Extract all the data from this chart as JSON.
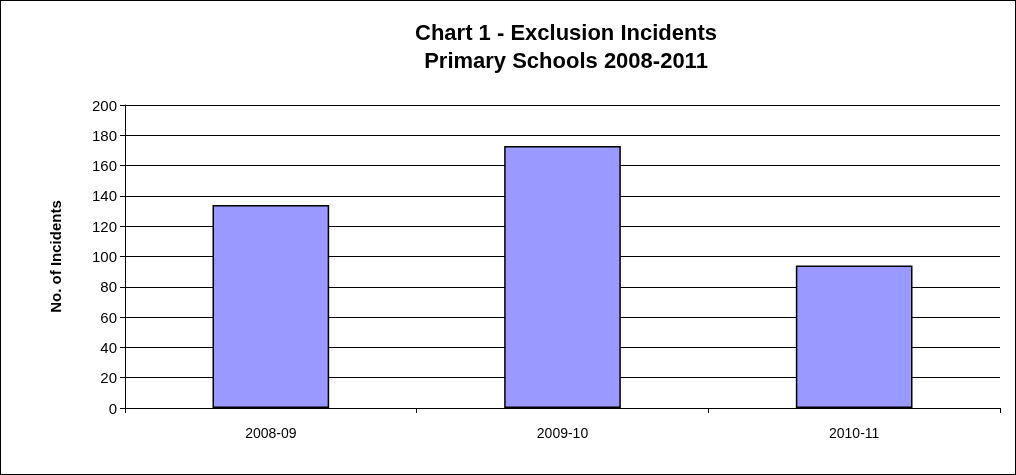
{
  "chart_data": {
    "type": "bar",
    "title": "Chart 1 - Exclusion Incidents\nPrimary Schools 2008-2011",
    "ylabel": "No. of Incidents",
    "categories": [
      "2008-09",
      "2009-10",
      "2010-11"
    ],
    "values": [
      134,
      173,
      94
    ],
    "color": "#9999ff",
    "ylim": [
      0,
      200
    ],
    "yticks": [
      0,
      20,
      40,
      60,
      80,
      100,
      120,
      140,
      160,
      180,
      200
    ],
    "grid": "y"
  }
}
